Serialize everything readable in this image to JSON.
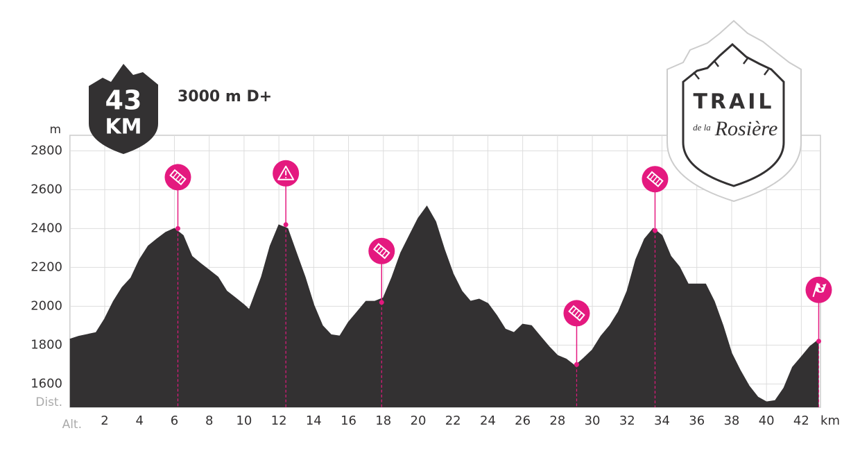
{
  "badge": {
    "distance": "43",
    "unit": "KM"
  },
  "logo": {
    "line1": "TRAIL",
    "line2": "de la",
    "line3": "Rosière"
  },
  "chart_data": {
    "type": "area",
    "title": "3000 m D+",
    "y_label": "m",
    "x_label": "km",
    "corner_top": "Dist.",
    "corner_bottom": "Alt.",
    "color": "#333132",
    "marker_color": "#e4197f",
    "grid": true,
    "xlim": [
      0,
      43.1
    ],
    "ylim": [
      1480,
      2880
    ],
    "xticks": [
      2,
      4,
      6,
      8,
      10,
      12,
      14,
      16,
      18,
      20,
      22,
      24,
      26,
      28,
      30,
      32,
      34,
      36,
      38,
      40,
      42
    ],
    "yticks": [
      1600,
      1800,
      2000,
      2200,
      2400,
      2600,
      2800
    ],
    "x": [
      0,
      0.5,
      1.5,
      2,
      2.5,
      3,
      3.5,
      4,
      4.5,
      5,
      5.5,
      6,
      6.5,
      7,
      7.5,
      8,
      8.5,
      9,
      9.5,
      10,
      10.3,
      11,
      11.5,
      12,
      12.5,
      13,
      13.5,
      14,
      14.5,
      15,
      15.5,
      16,
      16.5,
      17,
      17.5,
      18,
      18.5,
      19,
      19.5,
      20,
      20.5,
      21,
      21.5,
      22,
      22.5,
      23,
      23.5,
      24,
      24.5,
      25,
      25.5,
      26,
      26.5,
      27,
      27.5,
      28,
      28.5,
      29,
      29.5,
      30,
      30.5,
      31,
      31.5,
      32,
      32.5,
      33,
      33.5,
      34,
      34.5,
      35,
      35.5,
      36,
      36.5,
      37,
      37.5,
      38,
      38.5,
      39,
      39.5,
      40,
      40.5,
      41,
      41.5,
      42,
      42.5,
      43
    ],
    "values": [
      1830,
      1845,
      1864,
      1935,
      2025,
      2096,
      2145,
      2240,
      2310,
      2346,
      2380,
      2400,
      2364,
      2257,
      2220,
      2185,
      2150,
      2078,
      2043,
      2007,
      1982,
      2150,
      2310,
      2418,
      2400,
      2275,
      2150,
      2007,
      1900,
      1853,
      1846,
      1918,
      1971,
      2025,
      2025,
      2043,
      2150,
      2275,
      2364,
      2453,
      2514,
      2435,
      2293,
      2168,
      2078,
      2025,
      2036,
      2014,
      1953,
      1882,
      1864,
      1907,
      1900,
      1846,
      1793,
      1746,
      1728,
      1693,
      1732,
      1775,
      1846,
      1900,
      1971,
      2078,
      2240,
      2346,
      2400,
      2364,
      2257,
      2203,
      2114,
      2114,
      2114,
      2025,
      1900,
      1757,
      1668,
      1589,
      1532,
      1507,
      1514,
      1579,
      1686,
      1739,
      1793,
      1828
    ],
    "markers": [
      {
        "x": 6.2,
        "y": 2400,
        "icon": "aid"
      },
      {
        "x": 12.4,
        "y": 2420,
        "icon": "warning"
      },
      {
        "x": 17.9,
        "y": 2020,
        "icon": "aid"
      },
      {
        "x": 29.1,
        "y": 1700,
        "icon": "aid"
      },
      {
        "x": 33.6,
        "y": 2390,
        "icon": "aid"
      },
      {
        "x": 43,
        "y": 1820,
        "icon": "finish"
      }
    ]
  }
}
